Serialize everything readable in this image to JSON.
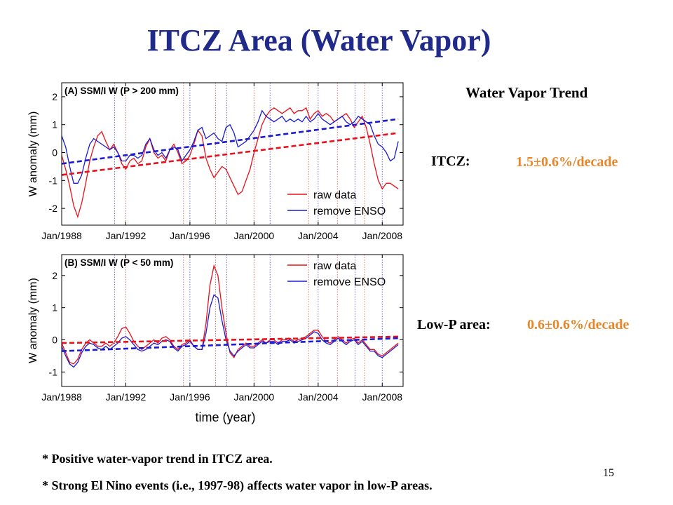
{
  "slide": {
    "title": "ITCZ Area (Water Vapor)",
    "trend_heading": "Water Vapor Trend",
    "itcz_label": "ITCZ:",
    "itcz_value": "1.5±0.6%/decade",
    "lowp_label": "Low-P area:",
    "lowp_value": "0.6±0.6%/decade",
    "bullet1": "* Positive water-vapor trend in ITCZ area.",
    "bullet2": "* Strong El Nino events (i.e., 1997-98) affects water vapor in low-P areas.",
    "page_number": "15",
    "colors": {
      "title": "#1f2a8a",
      "value": "#e8872a",
      "raw": "#e8101a",
      "enso": "#1a1ad0"
    }
  },
  "chart_data": [
    {
      "type": "line",
      "panel_label": "(A) SSM/I  W  (P > 200 mm)",
      "xlabel": "",
      "ylabel": "W anomaly (mm)",
      "xlim": [
        1988,
        2009.3
      ],
      "ylim": [
        -2.6,
        2.5
      ],
      "xticks": [
        1988,
        1992,
        1996,
        2000,
        2004,
        2008
      ],
      "xtick_labels": [
        "Jan/1988",
        "Jan/1992",
        "Jan/1996",
        "Jan/2000",
        "Jan/2004",
        "Jan/2008"
      ],
      "yticks": [
        -2,
        -1,
        0,
        1,
        2
      ],
      "ytick_labels": [
        "-2",
        "-1",
        "0",
        "1",
        "2"
      ],
      "legend": [
        "raw data",
        "remove ENSO"
      ],
      "legend_position": "bottom-right",
      "vlines_red": [
        1992.0,
        1995.6,
        1997.6,
        2000.0,
        2003.4,
        2005.2,
        2006.9
      ],
      "vlines_blue": [
        1991.3,
        1996.0,
        1998.3,
        2001.0,
        2004.0,
        2006.3,
        2008.0
      ],
      "series": [
        {
          "name": "raw data",
          "color": "#e8101a",
          "x": [
            1988.0,
            1988.25,
            1988.5,
            1988.75,
            1989.0,
            1989.25,
            1989.5,
            1989.75,
            1990.0,
            1990.25,
            1990.5,
            1990.75,
            1991.0,
            1991.25,
            1991.5,
            1991.75,
            1992.0,
            1992.25,
            1992.5,
            1992.75,
            1993.0,
            1993.25,
            1993.5,
            1993.75,
            1994.0,
            1994.25,
            1994.5,
            1994.75,
            1995.0,
            1995.25,
            1995.5,
            1995.75,
            1996.0,
            1996.25,
            1996.5,
            1996.75,
            1997.0,
            1997.25,
            1997.5,
            1997.75,
            1998.0,
            1998.25,
            1998.5,
            1998.75,
            1999.0,
            1999.25,
            1999.5,
            1999.75,
            2000.0,
            2000.25,
            2000.5,
            2000.75,
            2001.0,
            2001.25,
            2001.5,
            2001.75,
            2002.0,
            2002.25,
            2002.5,
            2002.75,
            2003.0,
            2003.25,
            2003.5,
            2003.75,
            2004.0,
            2004.25,
            2004.5,
            2004.75,
            2005.0,
            2005.25,
            2005.5,
            2005.75,
            2006.0,
            2006.25,
            2006.5,
            2006.75,
            2007.0,
            2007.25,
            2007.5,
            2007.75,
            2008.0,
            2008.25,
            2008.5,
            2008.75,
            2009.0
          ],
          "y": [
            -0.1,
            -0.6,
            -1.2,
            -1.9,
            -2.3,
            -1.8,
            -1.1,
            -0.3,
            0.2,
            0.6,
            0.75,
            0.4,
            0.1,
            0.3,
            0.0,
            -0.4,
            -0.6,
            -0.3,
            -0.2,
            -0.4,
            -0.3,
            0.2,
            0.5,
            0.0,
            -0.2,
            -0.1,
            -0.3,
            0.1,
            0.3,
            0.0,
            -0.4,
            -0.3,
            -0.1,
            0.3,
            0.8,
            0.6,
            -0.2,
            -0.6,
            -0.9,
            -0.7,
            -0.5,
            -0.6,
            -0.9,
            -1.2,
            -1.5,
            -1.4,
            -1.0,
            -0.6,
            0.0,
            0.5,
            1.0,
            1.3,
            1.5,
            1.6,
            1.5,
            1.4,
            1.5,
            1.6,
            1.4,
            1.5,
            1.5,
            1.6,
            1.2,
            1.4,
            1.5,
            1.3,
            1.4,
            1.3,
            1.1,
            1.2,
            1.3,
            1.4,
            1.2,
            0.9,
            1.1,
            1.3,
            0.9,
            0.3,
            -0.4,
            -1.0,
            -1.3,
            -1.1,
            -1.1,
            -1.2,
            -1.3
          ]
        },
        {
          "name": "remove ENSO",
          "color": "#1a1ad0",
          "x": [
            1988.0,
            1988.25,
            1988.5,
            1988.75,
            1989.0,
            1989.25,
            1989.5,
            1989.75,
            1990.0,
            1990.25,
            1990.5,
            1990.75,
            1991.0,
            1991.25,
            1991.5,
            1991.75,
            1992.0,
            1992.25,
            1992.5,
            1992.75,
            1993.0,
            1993.25,
            1993.5,
            1993.75,
            1994.0,
            1994.25,
            1994.5,
            1994.75,
            1995.0,
            1995.25,
            1995.5,
            1995.75,
            1996.0,
            1996.25,
            1996.5,
            1996.75,
            1997.0,
            1997.25,
            1997.5,
            1997.75,
            1998.0,
            1998.25,
            1998.5,
            1998.75,
            1999.0,
            1999.25,
            1999.5,
            1999.75,
            2000.0,
            2000.25,
            2000.5,
            2000.75,
            2001.0,
            2001.25,
            2001.5,
            2001.75,
            2002.0,
            2002.25,
            2002.5,
            2002.75,
            2003.0,
            2003.25,
            2003.5,
            2003.75,
            2004.0,
            2004.25,
            2004.5,
            2004.75,
            2005.0,
            2005.25,
            2005.5,
            2005.75,
            2006.0,
            2006.25,
            2006.5,
            2006.75,
            2007.0,
            2007.25,
            2007.5,
            2007.75,
            2008.0,
            2008.25,
            2008.5,
            2008.75,
            2009.0
          ],
          "y": [
            0.6,
            0.2,
            -0.5,
            -1.1,
            -1.1,
            -0.8,
            -0.2,
            0.3,
            0.5,
            0.4,
            0.3,
            0.2,
            0.1,
            0.2,
            0.0,
            -0.3,
            -0.3,
            -0.1,
            -0.1,
            -0.2,
            -0.1,
            0.3,
            0.5,
            0.1,
            -0.1,
            0.0,
            -0.2,
            0.1,
            0.2,
            0.1,
            -0.3,
            -0.1,
            0.1,
            0.4,
            0.8,
            0.9,
            0.5,
            0.6,
            0.7,
            0.5,
            0.4,
            0.9,
            1.0,
            0.7,
            0.2,
            0.3,
            0.4,
            0.6,
            0.8,
            1.1,
            1.5,
            1.3,
            1.2,
            1.1,
            1.2,
            1.3,
            1.1,
            1.2,
            1.1,
            1.2,
            1.1,
            1.3,
            1.1,
            1.2,
            1.4,
            1.2,
            1.1,
            1.0,
            1.1,
            1.2,
            1.3,
            1.1,
            1.0,
            1.1,
            1.3,
            1.2,
            1.1,
            1.0,
            0.6,
            0.3,
            0.2,
            0.0,
            -0.3,
            -0.2,
            0.4
          ]
        },
        {
          "name": "",
          "color": "#e8101a",
          "dashed": true,
          "x": [
            1988.0,
            2009.0
          ],
          "y": [
            -0.8,
            0.7
          ]
        },
        {
          "name": "",
          "color": "#1a1ad0",
          "dashed": true,
          "x": [
            1988.0,
            2009.0
          ],
          "y": [
            -0.4,
            1.2
          ]
        }
      ]
    },
    {
      "type": "line",
      "panel_label": "(B) SSM/I  W  (P < 50 mm)",
      "xlabel": "time (year)",
      "ylabel": "W anomaly (mm)",
      "xlim": [
        1988,
        2009.3
      ],
      "ylim": [
        -1.45,
        2.65
      ],
      "xticks": [
        1988,
        1992,
        1996,
        2000,
        2004,
        2008
      ],
      "xtick_labels": [
        "Jan/1988",
        "Jan/1992",
        "Jan/1996",
        "Jan/2000",
        "Jan/2004",
        "Jan/2008"
      ],
      "yticks": [
        -1,
        0,
        1,
        2
      ],
      "ytick_labels": [
        "-1",
        "0",
        "1",
        "2"
      ],
      "legend": [
        "raw data",
        "remove ENSO"
      ],
      "legend_position": "top-right",
      "vlines_red": [
        1992.0,
        1995.6,
        1997.6,
        2000.0,
        2003.4,
        2005.2,
        2006.9
      ],
      "vlines_blue": [
        1991.3,
        1996.0,
        1998.3,
        2001.0,
        2004.0,
        2006.3,
        2008.0
      ],
      "series": [
        {
          "name": "raw data",
          "color": "#e8101a",
          "x": [
            1988.0,
            1988.25,
            1988.5,
            1988.75,
            1989.0,
            1989.25,
            1989.5,
            1989.75,
            1990.0,
            1990.25,
            1990.5,
            1990.75,
            1991.0,
            1991.25,
            1991.5,
            1991.75,
            1992.0,
            1992.25,
            1992.5,
            1992.75,
            1993.0,
            1993.25,
            1993.5,
            1993.75,
            1994.0,
            1994.25,
            1994.5,
            1994.75,
            1995.0,
            1995.25,
            1995.5,
            1995.75,
            1996.0,
            1996.25,
            1996.5,
            1996.75,
            1997.0,
            1997.25,
            1997.5,
            1997.75,
            1998.0,
            1998.25,
            1998.5,
            1998.75,
            1999.0,
            1999.25,
            1999.5,
            1999.75,
            2000.0,
            2000.25,
            2000.5,
            2000.75,
            2001.0,
            2001.25,
            2001.5,
            2001.75,
            2002.0,
            2002.25,
            2002.5,
            2002.75,
            2003.0,
            2003.25,
            2003.5,
            2003.75,
            2004.0,
            2004.25,
            2004.5,
            2004.75,
            2005.0,
            2005.25,
            2005.5,
            2005.75,
            2006.0,
            2006.25,
            2006.5,
            2006.75,
            2007.0,
            2007.25,
            2007.5,
            2007.75,
            2008.0,
            2008.25,
            2008.5,
            2008.75,
            2009.0
          ],
          "y": [
            -0.1,
            -0.4,
            -0.7,
            -0.75,
            -0.6,
            -0.3,
            -0.1,
            0.0,
            -0.1,
            -0.2,
            -0.2,
            -0.1,
            -0.2,
            -0.1,
            0.1,
            0.35,
            0.4,
            0.2,
            -0.05,
            -0.2,
            -0.3,
            -0.2,
            -0.1,
            0.0,
            -0.1,
            0.05,
            0.1,
            0.0,
            -0.2,
            -0.3,
            -0.15,
            -0.1,
            0.0,
            -0.2,
            -0.3,
            -0.3,
            0.5,
            1.7,
            2.3,
            2.0,
            1.0,
            0.2,
            -0.4,
            -0.55,
            -0.3,
            -0.2,
            -0.1,
            -0.2,
            -0.2,
            -0.1,
            0.0,
            -0.1,
            0.0,
            0.0,
            -0.1,
            0.0,
            0.0,
            0.05,
            -0.05,
            0.0,
            0.05,
            0.1,
            0.2,
            0.3,
            0.3,
            0.1,
            -0.05,
            -0.1,
            0.0,
            0.1,
            0.0,
            -0.1,
            0.0,
            0.05,
            -0.1,
            0.0,
            -0.15,
            -0.3,
            -0.3,
            -0.45,
            -0.5,
            -0.4,
            -0.3,
            -0.2,
            -0.1
          ]
        },
        {
          "name": "remove ENSO",
          "color": "#1a1ad0",
          "x": [
            1988.0,
            1988.25,
            1988.5,
            1988.75,
            1989.0,
            1989.25,
            1989.5,
            1989.75,
            1990.0,
            1990.25,
            1990.5,
            1990.75,
            1991.0,
            1991.25,
            1991.5,
            1991.75,
            1992.0,
            1992.25,
            1992.5,
            1992.75,
            1993.0,
            1993.25,
            1993.5,
            1993.75,
            1994.0,
            1994.25,
            1994.5,
            1994.75,
            1995.0,
            1995.25,
            1995.5,
            1995.75,
            1996.0,
            1996.25,
            1996.5,
            1996.75,
            1997.0,
            1997.25,
            1997.5,
            1997.75,
            1998.0,
            1998.25,
            1998.5,
            1998.75,
            1999.0,
            1999.25,
            1999.5,
            1999.75,
            2000.0,
            2000.25,
            2000.5,
            2000.75,
            2001.0,
            2001.25,
            2001.5,
            2001.75,
            2002.0,
            2002.25,
            2002.5,
            2002.75,
            2003.0,
            2003.25,
            2003.5,
            2003.75,
            2004.0,
            2004.25,
            2004.5,
            2004.75,
            2005.0,
            2005.25,
            2005.5,
            2005.75,
            2006.0,
            2006.25,
            2006.5,
            2006.75,
            2007.0,
            2007.25,
            2007.5,
            2007.75,
            2008.0,
            2008.25,
            2008.5,
            2008.75,
            2009.0
          ],
          "y": [
            -0.2,
            -0.5,
            -0.75,
            -0.85,
            -0.7,
            -0.4,
            -0.2,
            -0.1,
            -0.15,
            -0.25,
            -0.3,
            -0.2,
            -0.3,
            -0.2,
            -0.1,
            0.05,
            0.1,
            0.0,
            -0.15,
            -0.3,
            -0.35,
            -0.3,
            -0.2,
            -0.1,
            -0.15,
            -0.05,
            0.0,
            -0.05,
            -0.25,
            -0.35,
            -0.2,
            -0.15,
            -0.05,
            -0.2,
            -0.3,
            -0.3,
            0.2,
            1.0,
            1.4,
            1.3,
            0.6,
            0.0,
            -0.35,
            -0.5,
            -0.35,
            -0.25,
            -0.15,
            -0.25,
            -0.25,
            -0.15,
            -0.05,
            -0.1,
            -0.05,
            -0.05,
            -0.15,
            -0.05,
            -0.05,
            0.0,
            -0.1,
            -0.05,
            0.0,
            0.05,
            0.15,
            0.25,
            0.2,
            0.0,
            -0.1,
            -0.15,
            -0.05,
            0.05,
            -0.05,
            -0.15,
            -0.05,
            0.0,
            -0.15,
            -0.05,
            -0.2,
            -0.35,
            -0.35,
            -0.5,
            -0.55,
            -0.45,
            -0.35,
            -0.25,
            -0.15
          ]
        },
        {
          "name": "",
          "color": "#e8101a",
          "dashed": true,
          "x": [
            1988.0,
            2009.0
          ],
          "y": [
            -0.1,
            0.1
          ]
        },
        {
          "name": "",
          "color": "#1a1ad0",
          "dashed": true,
          "x": [
            1988.0,
            2009.0
          ],
          "y": [
            -0.35,
            0.05
          ]
        }
      ]
    }
  ]
}
